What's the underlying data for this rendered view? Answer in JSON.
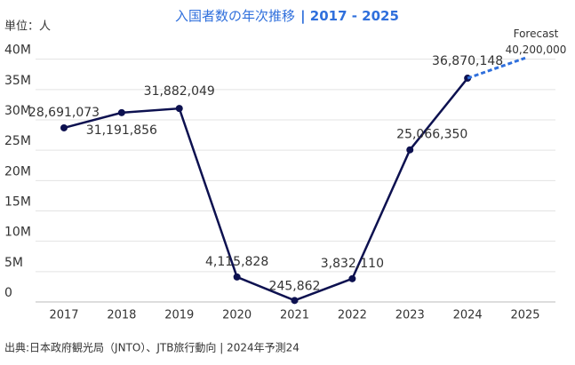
{
  "chart_data": {
    "type": "line",
    "title": "入国者数の年次推移",
    "title_suffix": "| 2017 - 2025",
    "unit_label": "単位：人",
    "source": "出典:日本政府観光局（JNTO）、JTB旅行動向 | 2024年予測24",
    "categories": [
      "2017",
      "2018",
      "2019",
      "2020",
      "2021",
      "2022",
      "2023",
      "2024",
      "2025"
    ],
    "series": [
      {
        "color": "#0d1150",
        "values": [
          28691073,
          31191856,
          31882049,
          4115828,
          245862,
          3832110,
          25066350,
          36870148,
          null
        ],
        "value_labels": [
          "28,691,073",
          "31,191,856",
          "31,882,049",
          "4,115,828",
          "245,862",
          "3,832,110",
          "25,066,350",
          "36,870,148",
          null
        ]
      },
      {
        "name": "Forecast",
        "color": "#2f6fdc",
        "dashed": true,
        "values": [
          null,
          null,
          null,
          null,
          null,
          null,
          null,
          null,
          40200000
        ],
        "value_labels": [
          null,
          null,
          null,
          null,
          null,
          null,
          null,
          null,
          "40,200,000"
        ]
      }
    ],
    "ylim": [
      0,
      42000000
    ],
    "yticks": [
      0,
      {
        "value": 5000000,
        "label": "5M"
      },
      {
        "value": 10000000,
        "label": "10M"
      },
      {
        "value": 15000000,
        "label": "15M"
      },
      {
        "value": 20000000,
        "label": "20M"
      },
      {
        "value": 25000000,
        "label": "25M"
      },
      {
        "value": 30000000,
        "label": "30M"
      },
      {
        "value": 35000000,
        "label": "35M"
      },
      {
        "value": 40000000,
        "label": "40M"
      }
    ],
    "grid": true
  }
}
